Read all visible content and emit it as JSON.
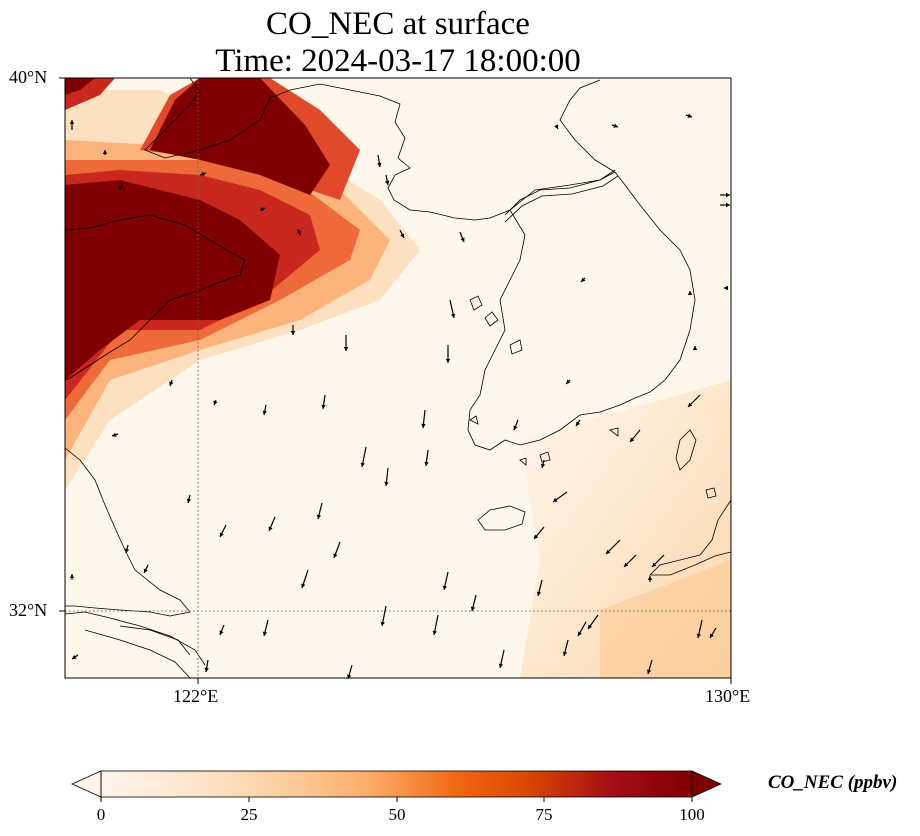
{
  "title": {
    "line1": "CO_NEC at surface",
    "line2": "Time: 2024-03-17 18:00:00"
  },
  "map": {
    "lon_range": [
      120,
      130
    ],
    "lat_range": [
      31,
      40
    ],
    "lat_ticks": [
      {
        "value": 40,
        "label": "40°N"
      },
      {
        "value": 32,
        "label": "32°N"
      }
    ],
    "lon_ticks": [
      {
        "value": 122,
        "label": "122°E"
      },
      {
        "value": 130,
        "label": "130°E"
      }
    ],
    "gridlines": "dotted at 122°E and 32°N"
  },
  "colorbar": {
    "label": "CO_NEC (ppbv)",
    "min": 0,
    "max": 100,
    "ticks": [
      {
        "value": 0,
        "label": "0"
      },
      {
        "value": 25,
        "label": "25"
      },
      {
        "value": 50,
        "label": "50"
      },
      {
        "value": 75,
        "label": "75"
      },
      {
        "value": 100,
        "label": "100"
      }
    ],
    "extend": "both",
    "colormap": [
      "#fff5eb",
      "#fee6ce",
      "#fdd0a2",
      "#fdae6b",
      "#f16913",
      "#d94801",
      "#a50f15",
      "#7f0000"
    ]
  }
}
